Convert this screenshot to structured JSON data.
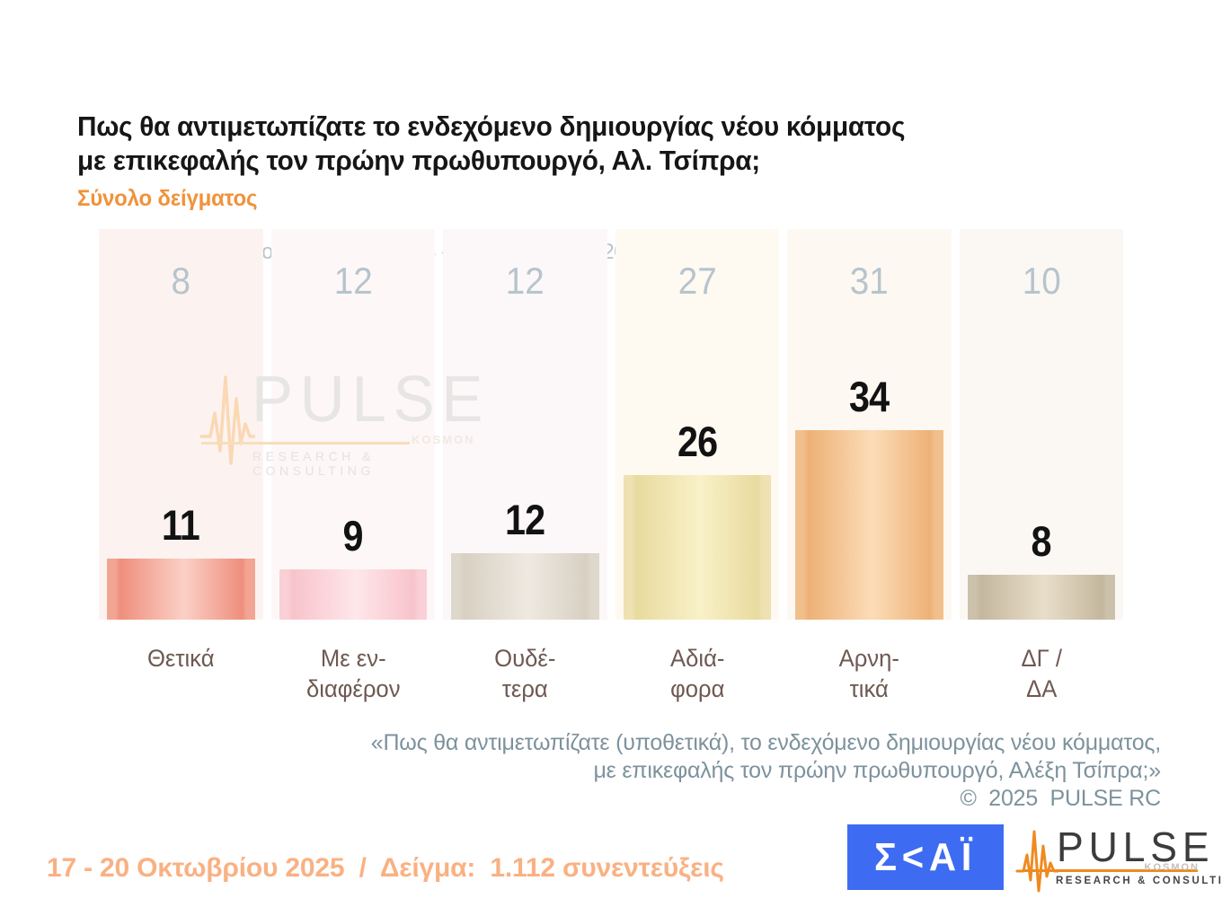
{
  "title": {
    "line1": "Πως θα αντιμετωπίζατε το ενδεχόμενο δημιουργίας νέου κόμματος",
    "line2": "με επικεφαλής τον πρώην πρωθυπουργό, Αλ. Τσίπρα;",
    "subtitle": "Σύνολο δείγματος"
  },
  "chart_data": {
    "type": "bar",
    "title": "Πως θα αντιμετωπίζατε το ενδεχόμενο δημιουργίας νέου κόμματος με επικεφαλής τον πρώην πρωθυπουργό, Αλ. Τσίπρα; (Σύνολο δείγματος)",
    "previous_survey_label": "Προηγούμενη έρευνα ( 14 - 16 Σεπτεμβρίου 2025 )",
    "categories": [
      "Θετικά",
      "Με ενδιαφέρον",
      "Ουδέτερα",
      "Αδιάφορα",
      "Αρνητικά",
      "ΔΓ / ΔΑ"
    ],
    "category_label_lines": [
      [
        "Θετικά"
      ],
      [
        "Με εν-",
        "διαφέρον"
      ],
      [
        "Ουδέ-",
        "τερα"
      ],
      [
        "Αδιά-",
        "φορα"
      ],
      [
        "Αρνη-",
        "τικά"
      ],
      [
        "ΔΓ /",
        "ΔΑ"
      ]
    ],
    "series": [
      {
        "name": "17 - 20 Οκτωβρίου 2025",
        "values": [
          11,
          9,
          12,
          26,
          34,
          8
        ]
      },
      {
        "name": "Προηγούμενη έρευνα ( 14 - 16 Σεπτεμβρίου 2025 )",
        "values": [
          8,
          12,
          12,
          27,
          31,
          10
        ]
      }
    ],
    "ylim": [
      0,
      70
    ],
    "grid": false,
    "legend_position": "none",
    "bar_styles": [
      {
        "edge": "#ef8f7d",
        "mid": "#fbd0c6",
        "cap": "#f3a593"
      },
      {
        "edge": "#f8c3cb",
        "mid": "#fee7ea",
        "cap": "#facfd6"
      },
      {
        "edge": "#d8d0c2",
        "mid": "#efe9e1",
        "cap": "#ded7cb"
      },
      {
        "edge": "#e8db9f",
        "mid": "#f9f1c8",
        "cap": "#eee2b2"
      },
      {
        "edge": "#edb177",
        "mid": "#fcdcb7",
        "cap": "#f1bf8c"
      },
      {
        "edge": "#c4b79e",
        "mid": "#e9dec9",
        "cap": "#ccc1ab"
      }
    ],
    "column_bg": [
      "#fcf3f1",
      "#fdf7f8",
      "#fcf8f9",
      "#fefaf1",
      "#fdf9f2",
      "#fbf8f4"
    ]
  },
  "watermark": {
    "brand": "PULSE",
    "kosmon": "KOSMON",
    "sub": "RESEARCH & CONSULTING",
    "wave_color": "#fbd8b4"
  },
  "footer": {
    "quote_line1": "«Πως θα αντιμετωπίζατε (υποθετικά), το ενδεχόμενο δημιουργίας νέου κόμματος,",
    "quote_line2": "με επικεφαλής τον πρώην πρωθυπουργό, Αλέξη Τσίπρα;»",
    "copyright": "©  2025  PULSE RC",
    "fieldwork": "17 - 20 Οκτωβρίου 2025  /  Δείγμα:  1.112 συνεντεύξεις"
  },
  "logos": {
    "skai_text": "Σ<ΑΪ",
    "pulse_brand": "PULSE",
    "pulse_kosmon": "KOSMON",
    "pulse_sub": "RESEARCH & CONSULTING",
    "skai_blue": "#3d6cf2",
    "pulse_orange": "#ef8a1f"
  },
  "colors": {
    "title_text": "#161616",
    "subtitle_orange": "#f0923b",
    "prev_gray_blue": "#b7c4cc",
    "category_brown": "#6e5951",
    "quote_gray": "#7d929d",
    "fieldwork_orange": "#f9b183",
    "value_black": "#121212"
  }
}
